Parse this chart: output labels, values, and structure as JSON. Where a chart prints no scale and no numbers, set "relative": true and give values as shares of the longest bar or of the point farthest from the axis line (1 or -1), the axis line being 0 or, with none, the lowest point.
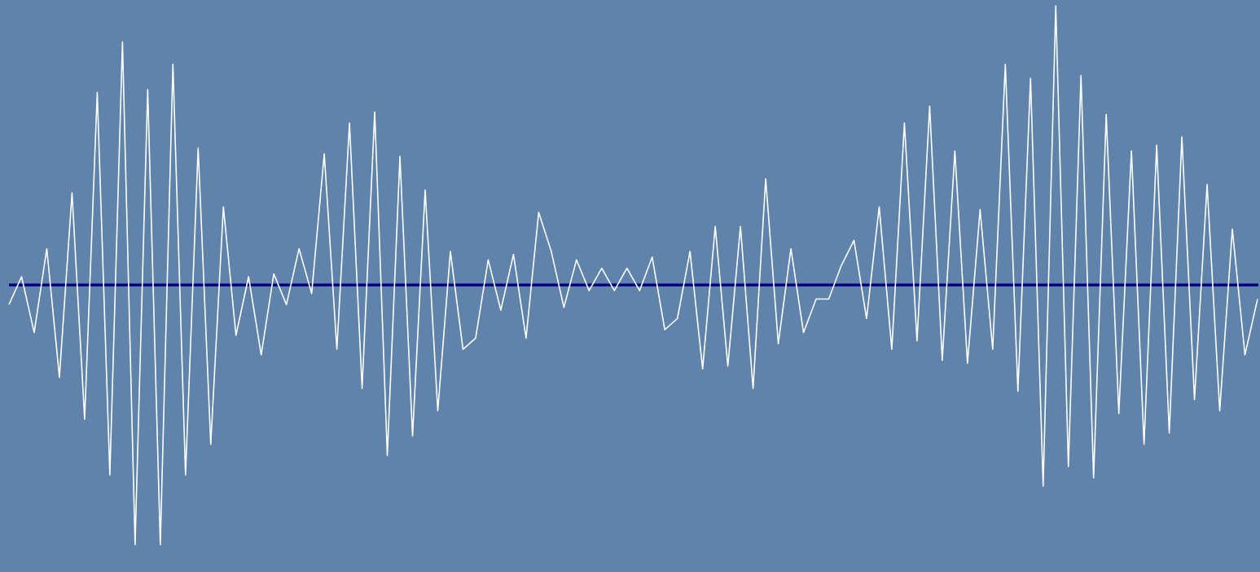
{
  "chart_data": {
    "type": "line",
    "relative": true,
    "marker": "none",
    "line_style": "solid",
    "grid": false,
    "legend": false,
    "ref_lines": [
      {
        "axis": "y",
        "value": 0,
        "color": "#000080"
      }
    ],
    "categories": [
      null,
      null,
      null,
      null,
      null,
      null,
      null,
      null,
      null,
      null,
      null,
      null,
      null,
      null,
      null,
      null,
      null,
      null,
      null,
      null,
      null,
      null,
      null,
      null,
      null,
      null,
      null,
      null,
      null,
      null,
      null,
      null,
      null,
      null,
      null,
      null,
      null,
      null,
      null,
      null,
      null,
      null,
      null,
      null,
      null,
      null,
      null,
      null,
      null,
      null,
      null,
      null,
      null,
      null,
      null,
      null,
      null,
      null,
      null,
      null,
      null,
      null,
      null,
      null,
      null,
      null,
      null,
      null,
      null,
      null,
      null,
      null,
      null,
      null,
      null,
      null,
      null,
      null,
      null,
      null,
      null,
      null,
      null,
      null,
      null,
      null,
      null,
      null,
      null,
      null,
      null,
      null,
      null,
      null,
      null,
      null,
      null,
      null,
      null,
      null
    ],
    "series": [
      {
        "color": "#ffffff",
        "values": [
          -0.07,
          0.03,
          -0.17,
          0.13,
          -0.33,
          0.33,
          -0.48,
          0.69,
          -0.68,
          0.87,
          -0.93,
          0.7,
          -0.93,
          0.79,
          -0.68,
          0.49,
          -0.57,
          0.28,
          -0.18,
          0.03,
          -0.25,
          0.04,
          -0.07,
          0.13,
          -0.03,
          0.47,
          -0.23,
          0.58,
          -0.37,
          0.62,
          -0.61,
          0.46,
          -0.54,
          0.34,
          -0.45,
          0.12,
          -0.23,
          -0.19,
          0.09,
          -0.09,
          0.11,
          -0.19,
          0.26,
          0.12,
          -0.08,
          0.09,
          -0.02,
          0.06,
          -0.02,
          0.06,
          -0.02,
          0.1,
          -0.16,
          -0.12,
          0.12,
          -0.3,
          0.21,
          -0.29,
          0.21,
          -0.37,
          0.38,
          -0.21,
          0.13,
          -0.17,
          -0.05,
          -0.05,
          0.07,
          0.16,
          -0.12,
          0.28,
          -0.23,
          0.58,
          -0.2,
          0.64,
          -0.27,
          0.48,
          -0.28,
          0.27,
          -0.23,
          0.79,
          -0.38,
          0.74,
          -0.72,
          1,
          -0.65,
          0.75,
          -0.69,
          0.61,
          -0.46,
          0.48,
          -0.57,
          0.5,
          -0.53,
          0.53,
          -0.41,
          0.36,
          -0.45,
          0.2,
          -0.25,
          -0.05
        ]
      }
    ]
  }
}
